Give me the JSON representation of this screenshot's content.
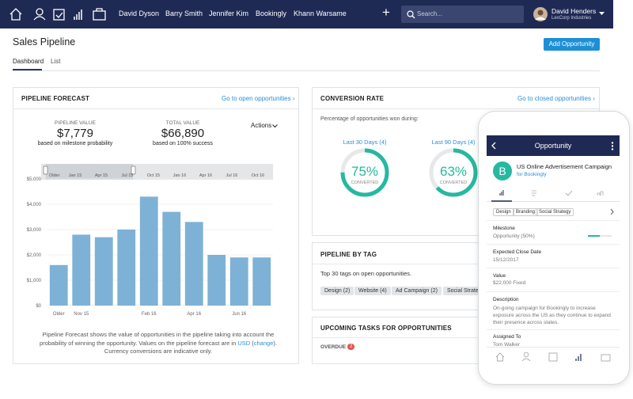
{
  "nav": {
    "contacts": [
      "David Dyson",
      "Barry Smith",
      "Jennifer Kim",
      "Bookingly",
      "Khann Warsame"
    ],
    "add": "+",
    "search_placeholder": "Search...",
    "user_name": "David Henders",
    "user_company": "LexCorp Industries"
  },
  "header": {
    "title": "Sales Pipeline",
    "button": "Add Opportunity",
    "tabs": [
      "Dashboard",
      "List"
    ]
  },
  "pipeline_forecast": {
    "title": "PIPELINE FORECAST",
    "link": "Go to open opportunities ›",
    "pipeline_value": {
      "label": "PIPELINE VALUE",
      "value": "$7,779",
      "note": "based on milestone probability"
    },
    "total_value": {
      "label": "TOTAL VALUE",
      "value": "$66,890",
      "note": "based on 100% success"
    },
    "actions": "Actions",
    "range_labels": [
      "Older",
      "Jan 15",
      "Apr 15",
      "Jul 15",
      "Oct 15",
      "Jan 16",
      "Apr 16",
      "Jul 16",
      "Oct 16"
    ],
    "chart": {
      "type": "bar",
      "categories": [
        "Older",
        "Nov 15",
        null,
        null,
        "Feb 16",
        null,
        "Apr 16",
        null,
        "Jun 16",
        null
      ],
      "values": [
        1600,
        2800,
        2700,
        3000,
        4300,
        3700,
        3300,
        2000,
        1900,
        1900
      ],
      "color": "#7eb1d6",
      "ylim": [
        0,
        5000
      ],
      "yticks": [
        {
          "value": 0,
          "label": "$0"
        },
        {
          "value": 1000,
          "label": "$1,000"
        },
        {
          "value": 2000,
          "label": "$2,000"
        },
        {
          "value": 3000,
          "label": "$3,000"
        },
        {
          "value": 4000,
          "label": "$4,000"
        },
        {
          "value": 5000,
          "label": "$5,000"
        }
      ],
      "grid": true
    },
    "description": [
      "Pipeline Forecast shows the value of opportunities in the pipeline taking into account the probability of winning the opportunity. Values on the pipeline forecast are in ",
      "USD",
      " (",
      "change",
      "). Currency conversions are indicative only."
    ]
  },
  "conversion_rate": {
    "title": "CONVERSION RATE",
    "link": "Go to closed opportunities ›",
    "subtitle": "Percentage of opportunities won during:",
    "periods": [
      "Last 30 Days (4)",
      "Last 90 Days (4)"
    ],
    "values": [
      75,
      63
    ],
    "value_labels": [
      "75%",
      "63%"
    ],
    "caption": "CONVERTED",
    "color": "#27b8a0"
  },
  "pipeline_by_tag": {
    "title": "PIPELINE BY TAG",
    "subtitle": "Top 30 tags on open opportunities.",
    "tags": [
      "Design (2)",
      "Website (4)",
      "Ad Campaign (2)",
      "Social Strategy"
    ]
  },
  "upcoming_tasks": {
    "title": "UPCOMING TASKS FOR OPPORTUNITIES",
    "overdue": "OVERDUE",
    "overdue_count": 2
  },
  "phone": {
    "title": "Opportunity",
    "avatar": "B",
    "name": "US Online Advertisement Campaign",
    "for": "for Bookingly",
    "tags": [
      "Design",
      "Branding",
      "Social Strategy"
    ],
    "fields": [
      {
        "label": "Milestone",
        "value": "Opportunity (50%)"
      },
      {
        "label": "Expected Close Date",
        "value": "15/12/2017"
      },
      {
        "label": "Value",
        "value": "$22,000 Fixed"
      },
      {
        "label": "Description",
        "value": "On-going campaign for Bookingly to increase exposure across the US as they continue to expand their presence across states."
      },
      {
        "label": "Assigned To",
        "value": "Tom Walker"
      }
    ]
  }
}
